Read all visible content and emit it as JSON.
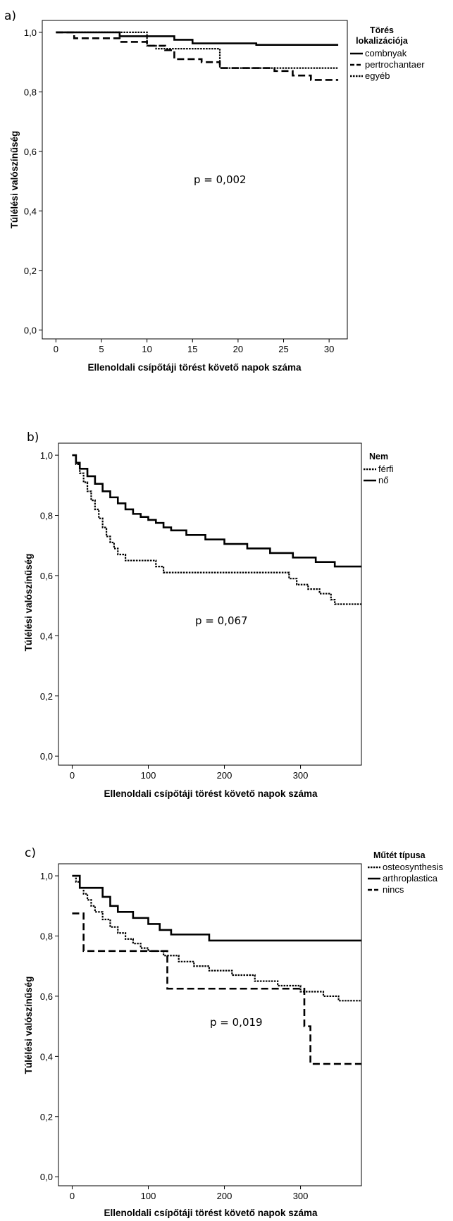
{
  "chart_data": [
    {
      "panel_label": "a)",
      "type": "line",
      "step": true,
      "xlabel": "Ellenoldali csípőtáji törést követő napok száma",
      "ylabel": "Túlélési valószínűség",
      "xlim": [
        -1.5,
        32
      ],
      "ylim": [
        -0.03,
        1.04
      ],
      "x_ticks": [
        0,
        5,
        10,
        15,
        20,
        25,
        30
      ],
      "y_ticks": [
        0.0,
        0.2,
        0.4,
        0.6,
        0.8,
        1.0
      ],
      "y_tick_labels": [
        "0,0",
        "0,2",
        "0,4",
        "0,6",
        "0,8",
        "1,0"
      ],
      "legend_title": "Törés lokalizációja",
      "legend_position": "right",
      "annotation": "p = 0,002",
      "series": [
        {
          "name": "combnyak",
          "style": "solid",
          "x": [
            0,
            7,
            13,
            15,
            22,
            31
          ],
          "y": [
            1.0,
            0.987,
            0.975,
            0.963,
            0.958,
            0.958
          ]
        },
        {
          "name": "pertrochantaer",
          "style": "dashed",
          "x": [
            0,
            2,
            7,
            10,
            12,
            13,
            16,
            18,
            24,
            26,
            28,
            31
          ],
          "y": [
            1.0,
            0.98,
            0.968,
            0.955,
            0.94,
            0.91,
            0.9,
            0.88,
            0.87,
            0.855,
            0.84,
            0.84
          ]
        },
        {
          "name": "egyéb",
          "style": "dotted",
          "x": [
            0,
            10,
            11,
            18,
            31
          ],
          "y": [
            1.0,
            0.955,
            0.945,
            0.88,
            0.88
          ]
        }
      ]
    },
    {
      "panel_label": "b)",
      "type": "line",
      "step": true,
      "xlabel": "Ellenoldali csípőtáji törést követő napok száma",
      "ylabel": "Túlélési valószínűség",
      "xlim": [
        -18,
        380
      ],
      "ylim": [
        -0.03,
        1.04
      ],
      "x_ticks": [
        0,
        100,
        200,
        300
      ],
      "y_ticks": [
        0.0,
        0.2,
        0.4,
        0.6,
        0.8,
        1.0
      ],
      "y_tick_labels": [
        "0,0",
        "0,2",
        "0,4",
        "0,6",
        "0,8",
        "1,0"
      ],
      "legend_title": "Nem",
      "legend_position": "right",
      "annotation": "p = 0,067",
      "series": [
        {
          "name": "férfi",
          "style": "dotted",
          "x": [
            0,
            5,
            10,
            15,
            20,
            25,
            30,
            35,
            40,
            45,
            50,
            55,
            60,
            70,
            80,
            110,
            120,
            175,
            285,
            295,
            310,
            325,
            340,
            345,
            380
          ],
          "y": [
            1.0,
            0.97,
            0.94,
            0.91,
            0.88,
            0.85,
            0.82,
            0.79,
            0.76,
            0.73,
            0.71,
            0.69,
            0.67,
            0.65,
            0.65,
            0.63,
            0.61,
            0.61,
            0.59,
            0.57,
            0.555,
            0.54,
            0.52,
            0.505,
            0.505
          ]
        },
        {
          "name": "nő",
          "style": "solid",
          "x": [
            0,
            5,
            10,
            20,
            30,
            40,
            50,
            60,
            70,
            80,
            90,
            100,
            110,
            120,
            130,
            150,
            175,
            200,
            230,
            260,
            290,
            320,
            345,
            380
          ],
          "y": [
            1.0,
            0.975,
            0.955,
            0.93,
            0.905,
            0.88,
            0.86,
            0.84,
            0.82,
            0.805,
            0.795,
            0.785,
            0.775,
            0.76,
            0.75,
            0.735,
            0.72,
            0.705,
            0.69,
            0.675,
            0.66,
            0.645,
            0.63,
            0.63
          ]
        }
      ]
    },
    {
      "panel_label": "c)",
      "type": "line",
      "step": true,
      "xlabel": "Ellenoldali csípőtáji törést követő napok száma",
      "ylabel": "Túlélési valószínűség",
      "xlim": [
        -18,
        380
      ],
      "ylim": [
        -0.03,
        1.04
      ],
      "x_ticks": [
        0,
        100,
        200,
        300
      ],
      "y_ticks": [
        0.0,
        0.2,
        0.4,
        0.6,
        0.8,
        1.0
      ],
      "y_tick_labels": [
        "0,0",
        "0,2",
        "0,4",
        "0,6",
        "0,8",
        "1,0"
      ],
      "legend_title": "Műtét típusa",
      "legend_position": "right",
      "annotation": "p = 0,019",
      "series": [
        {
          "name": "osteosynthesis",
          "style": "dotted",
          "x": [
            0,
            5,
            10,
            15,
            20,
            25,
            30,
            40,
            50,
            60,
            70,
            80,
            90,
            100,
            120,
            140,
            160,
            180,
            210,
            240,
            270,
            300,
            330,
            350,
            380
          ],
          "y": [
            1.0,
            0.98,
            0.96,
            0.94,
            0.92,
            0.9,
            0.88,
            0.855,
            0.83,
            0.81,
            0.79,
            0.775,
            0.76,
            0.75,
            0.735,
            0.715,
            0.7,
            0.685,
            0.67,
            0.65,
            0.635,
            0.615,
            0.6,
            0.585,
            0.585
          ]
        },
        {
          "name": "arthroplastica",
          "style": "solid",
          "x": [
            0,
            10,
            40,
            50,
            60,
            80,
            100,
            115,
            130,
            180,
            380
          ],
          "y": [
            1.0,
            0.96,
            0.93,
            0.9,
            0.88,
            0.86,
            0.84,
            0.82,
            0.805,
            0.785,
            0.785
          ]
        },
        {
          "name": "nincs",
          "style": "dashed",
          "x": [
            0,
            10,
            15,
            125,
            305,
            313,
            320,
            380
          ],
          "y": [
            0.875,
            0.875,
            0.75,
            0.625,
            0.5,
            0.375,
            0.375,
            0.375
          ]
        }
      ]
    }
  ]
}
